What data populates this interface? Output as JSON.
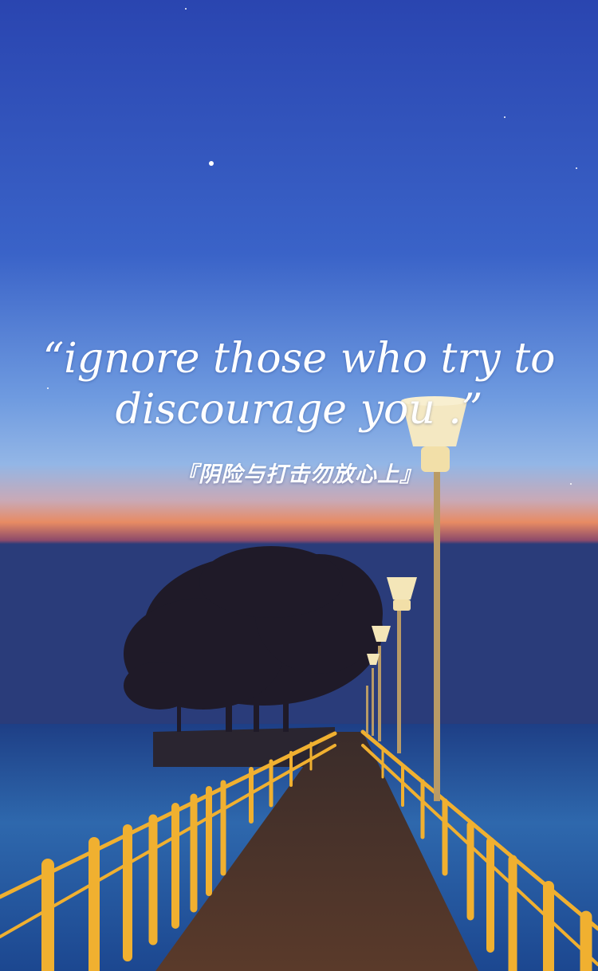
{
  "quote": {
    "line1": "“ignore those who try to",
    "line2": "discourage you .”"
  },
  "subtitle": "『阴险与打击勿放心上』",
  "scene": {
    "sky_top": "#2a4cb6",
    "sky_mid": "#4a7ad4",
    "horizon_glow": "#e9805a",
    "water": "#1f4f93",
    "railing": "#f2b533",
    "lamp": "#f4e6b8",
    "tree": "#1d1a2a"
  },
  "icons": [
    "star",
    "tree",
    "pier",
    "lamp-post"
  ]
}
